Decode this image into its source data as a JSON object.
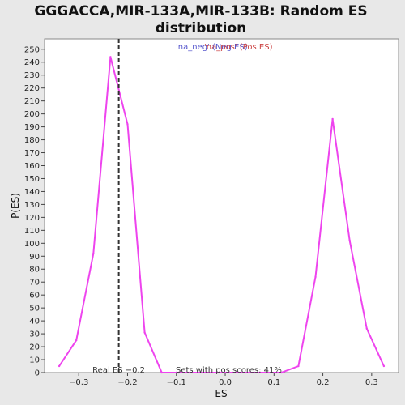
{
  "chart_data": {
    "type": "line",
    "title_line1": "GGGACCA,MIR-133A,MIR-133B: Random ES",
    "title_line2": "distribution",
    "xlabel": "ES",
    "ylabel": "P(ES)",
    "xlim": [
      -0.37,
      0.355
    ],
    "ylim": [
      0,
      258
    ],
    "x_ticks": [
      -0.3,
      -0.2,
      -0.1,
      0.0,
      0.1,
      0.2,
      0.3
    ],
    "x_tick_labels": [
      "−0.3",
      "−0.2",
      "−0.1",
      "0.0",
      "0.1",
      "0.2",
      "0.3"
    ],
    "y_ticks": [
      0,
      10,
      20,
      30,
      40,
      50,
      60,
      70,
      80,
      90,
      100,
      110,
      120,
      130,
      140,
      150,
      160,
      170,
      180,
      190,
      200,
      210,
      220,
      230,
      240,
      250
    ],
    "legend": {
      "neg_label": "'na_neg' (Neg ES)",
      "pos_label": "'na_pos' (Pos ES)",
      "position": "top-center"
    },
    "series": [
      {
        "color": "#ee44ee",
        "x": [
          -0.34,
          -0.305,
          -0.27,
          -0.235,
          -0.2,
          -0.165,
          -0.13,
          -0.095,
          0.115,
          0.15,
          0.185,
          0.22,
          0.255,
          0.29,
          0.325
        ],
        "y": [
          5,
          25,
          92,
          244,
          192,
          31,
          0,
          0,
          0,
          5,
          74,
          196,
          102,
          34,
          5
        ]
      }
    ],
    "vline": {
      "x": -0.218,
      "label": "Real ES −0.2",
      "style": "dashed"
    },
    "annotation": "Sets with pos scores: 41%"
  }
}
